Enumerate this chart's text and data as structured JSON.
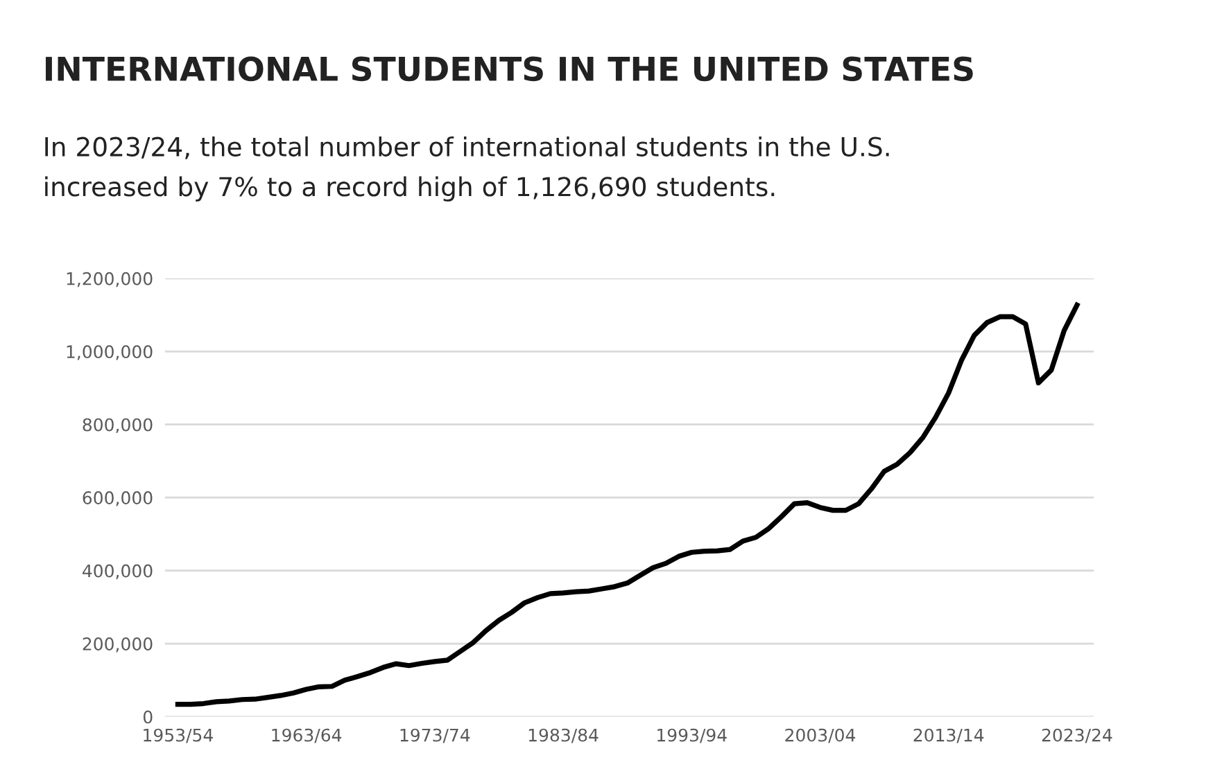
{
  "chart_data": {
    "type": "line",
    "title": "INTERNATIONAL STUDENTS IN THE UNITED STATES",
    "subtitle": "In 2023/24, the total number of international students in the U.S.\nincreased by 7% to a record high of 1,126,690 students.",
    "categories": [
      "1953/54",
      null,
      null,
      null,
      null,
      null,
      null,
      null,
      null,
      null,
      "1963/64",
      null,
      null,
      null,
      null,
      null,
      null,
      null,
      null,
      null,
      "1973/74",
      null,
      null,
      null,
      null,
      null,
      null,
      null,
      null,
      null,
      "1983/84",
      null,
      null,
      null,
      null,
      null,
      null,
      null,
      null,
      null,
      "1993/94",
      null,
      null,
      null,
      null,
      null,
      null,
      null,
      null,
      null,
      "2003/04",
      null,
      null,
      null,
      null,
      null,
      null,
      null,
      null,
      null,
      "2013/14",
      null,
      null,
      null,
      null,
      null,
      null,
      null,
      null,
      null,
      "2023/24"
    ],
    "series": [
      {
        "color": "#000000",
        "values": [
          34000,
          34000,
          36000,
          41000,
          43000,
          47000,
          48000,
          53000,
          58000,
          65000,
          75000,
          82000,
          83000,
          100000,
          110000,
          121000,
          135000,
          145000,
          140000,
          146000,
          151000,
          155000,
          179000,
          203000,
          236000,
          264000,
          286000,
          312000,
          326000,
          337000,
          339000,
          342000,
          344000,
          350000,
          356000,
          366000,
          387000,
          408000,
          420000,
          439000,
          450000,
          453000,
          454000,
          458000,
          481000,
          491000,
          515000,
          548000,
          583000,
          586000,
          573000,
          565000,
          565000,
          583000,
          624000,
          672000,
          691000,
          723000,
          764000,
          820000,
          886000,
          975000,
          1044000,
          1079000,
          1095000,
          1095000,
          1075000,
          914000,
          949000,
          1057000,
          1127000
        ]
      }
    ],
    "ylim": [
      0,
      1200000
    ],
    "yticks": [
      {
        "value": 0,
        "label": "0"
      },
      {
        "value": 200000,
        "label": "200,000"
      },
      {
        "value": 400000,
        "label": "400,000"
      },
      {
        "value": 600000,
        "label": "600,000"
      },
      {
        "value": 800000,
        "label": "800,000"
      },
      {
        "value": 1000000,
        "label": "1,000,000"
      },
      {
        "value": 1200000,
        "label": "1,200,000"
      }
    ],
    "grid": "y",
    "marker": "none",
    "line_style": "solid",
    "legend": false
  }
}
